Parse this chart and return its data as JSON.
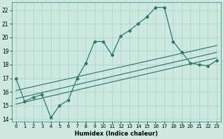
{
  "xlabel": "Humidex (Indice chaleur)",
  "xlim": [
    -0.5,
    23.5
  ],
  "ylim": [
    13.8,
    22.6
  ],
  "xticks": [
    0,
    1,
    2,
    3,
    4,
    5,
    6,
    7,
    8,
    9,
    10,
    11,
    12,
    13,
    14,
    15,
    16,
    17,
    18,
    19,
    20,
    21,
    22,
    23
  ],
  "yticks": [
    14,
    15,
    16,
    17,
    18,
    19,
    20,
    21,
    22
  ],
  "bg_color": "#cce8e0",
  "line_color": "#2a7a6a",
  "grid_color": "#b8d8cf",
  "line1_x": [
    0,
    1,
    2,
    3,
    4,
    5,
    6,
    7,
    8,
    9,
    10,
    11,
    12,
    13,
    14,
    15,
    16,
    17,
    18,
    19,
    20,
    21,
    22,
    23
  ],
  "line1_y": [
    17.0,
    15.3,
    15.6,
    15.8,
    14.1,
    15.0,
    15.4,
    17.0,
    18.1,
    19.7,
    19.7,
    18.7,
    20.1,
    20.5,
    21.0,
    21.5,
    22.2,
    22.2,
    19.7,
    18.9,
    18.1,
    18.0,
    17.9,
    18.3
  ],
  "trend1_x": [
    0,
    23
  ],
  "trend1_y": [
    15.1,
    18.5
  ],
  "trend2_x": [
    0,
    23
  ],
  "trend2_y": [
    15.5,
    18.9
  ],
  "trend3_x": [
    0,
    23
  ],
  "trend3_y": [
    16.1,
    19.4
  ]
}
